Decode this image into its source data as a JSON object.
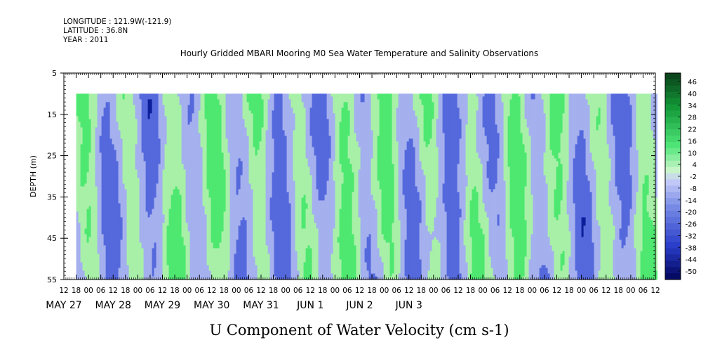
{
  "header": {
    "longitude": "LONGITUDE : 121.9W(-121.9)",
    "latitude": "LATITUDE : 36.8N",
    "year": "YEAR : 2011"
  },
  "chart_data": {
    "type": "heatmap",
    "title": "Hourly Gridded MBARI Mooring M0 Sea Water Temperature and Salinity Observations",
    "xlabel": "U Component of Water Velocity (cm s-1)",
    "ylabel": "DEPTH (m)",
    "ylim": [
      55,
      5
    ],
    "y_ticks": [
      "5",
      "15",
      "25",
      "35",
      "45",
      "55"
    ],
    "x_hour_ticks": [
      "12",
      "18",
      "00",
      "06",
      "12",
      "18",
      "00",
      "06",
      "12",
      "18",
      "00",
      "06",
      "12",
      "18",
      "00",
      "06",
      "12",
      "18",
      "00",
      "06",
      "12",
      "18",
      "00",
      "06",
      "12",
      "18",
      "00",
      "06",
      "12",
      "18",
      "00",
      "06",
      "12",
      "18",
      "00",
      "06",
      "12",
      "18",
      "00",
      "06",
      "12",
      "18",
      "00",
      "06",
      "12",
      "18",
      "00",
      "06",
      "12"
    ],
    "x_day_labels": [
      "MAY 27",
      "MAY 28",
      "MAY 29",
      "MAY 30",
      "MAY 31",
      "JUN 1",
      "JUN 2",
      "JUN 3"
    ],
    "data_depth_range": [
      10,
      55
    ],
    "data_start": "MAY 27 18",
    "colorbar": {
      "labels": [
        "46",
        "40",
        "34",
        "28",
        "22",
        "16",
        "10",
        "4",
        "-2",
        "-8",
        "-14",
        "-20",
        "-26",
        "-32",
        "-38",
        "-44",
        "-50"
      ],
      "range": [
        -50,
        49
      ]
    },
    "palette": {
      "strong_neg": "#0d1f9a",
      "mid_neg": "#5569dd",
      "weak_neg": "#a5b0ee",
      "weak_pos": "#a8f0a8",
      "mid_pos": "#4ee870",
      "strong_pos": "#0c5f1f"
    },
    "grid": false
  }
}
